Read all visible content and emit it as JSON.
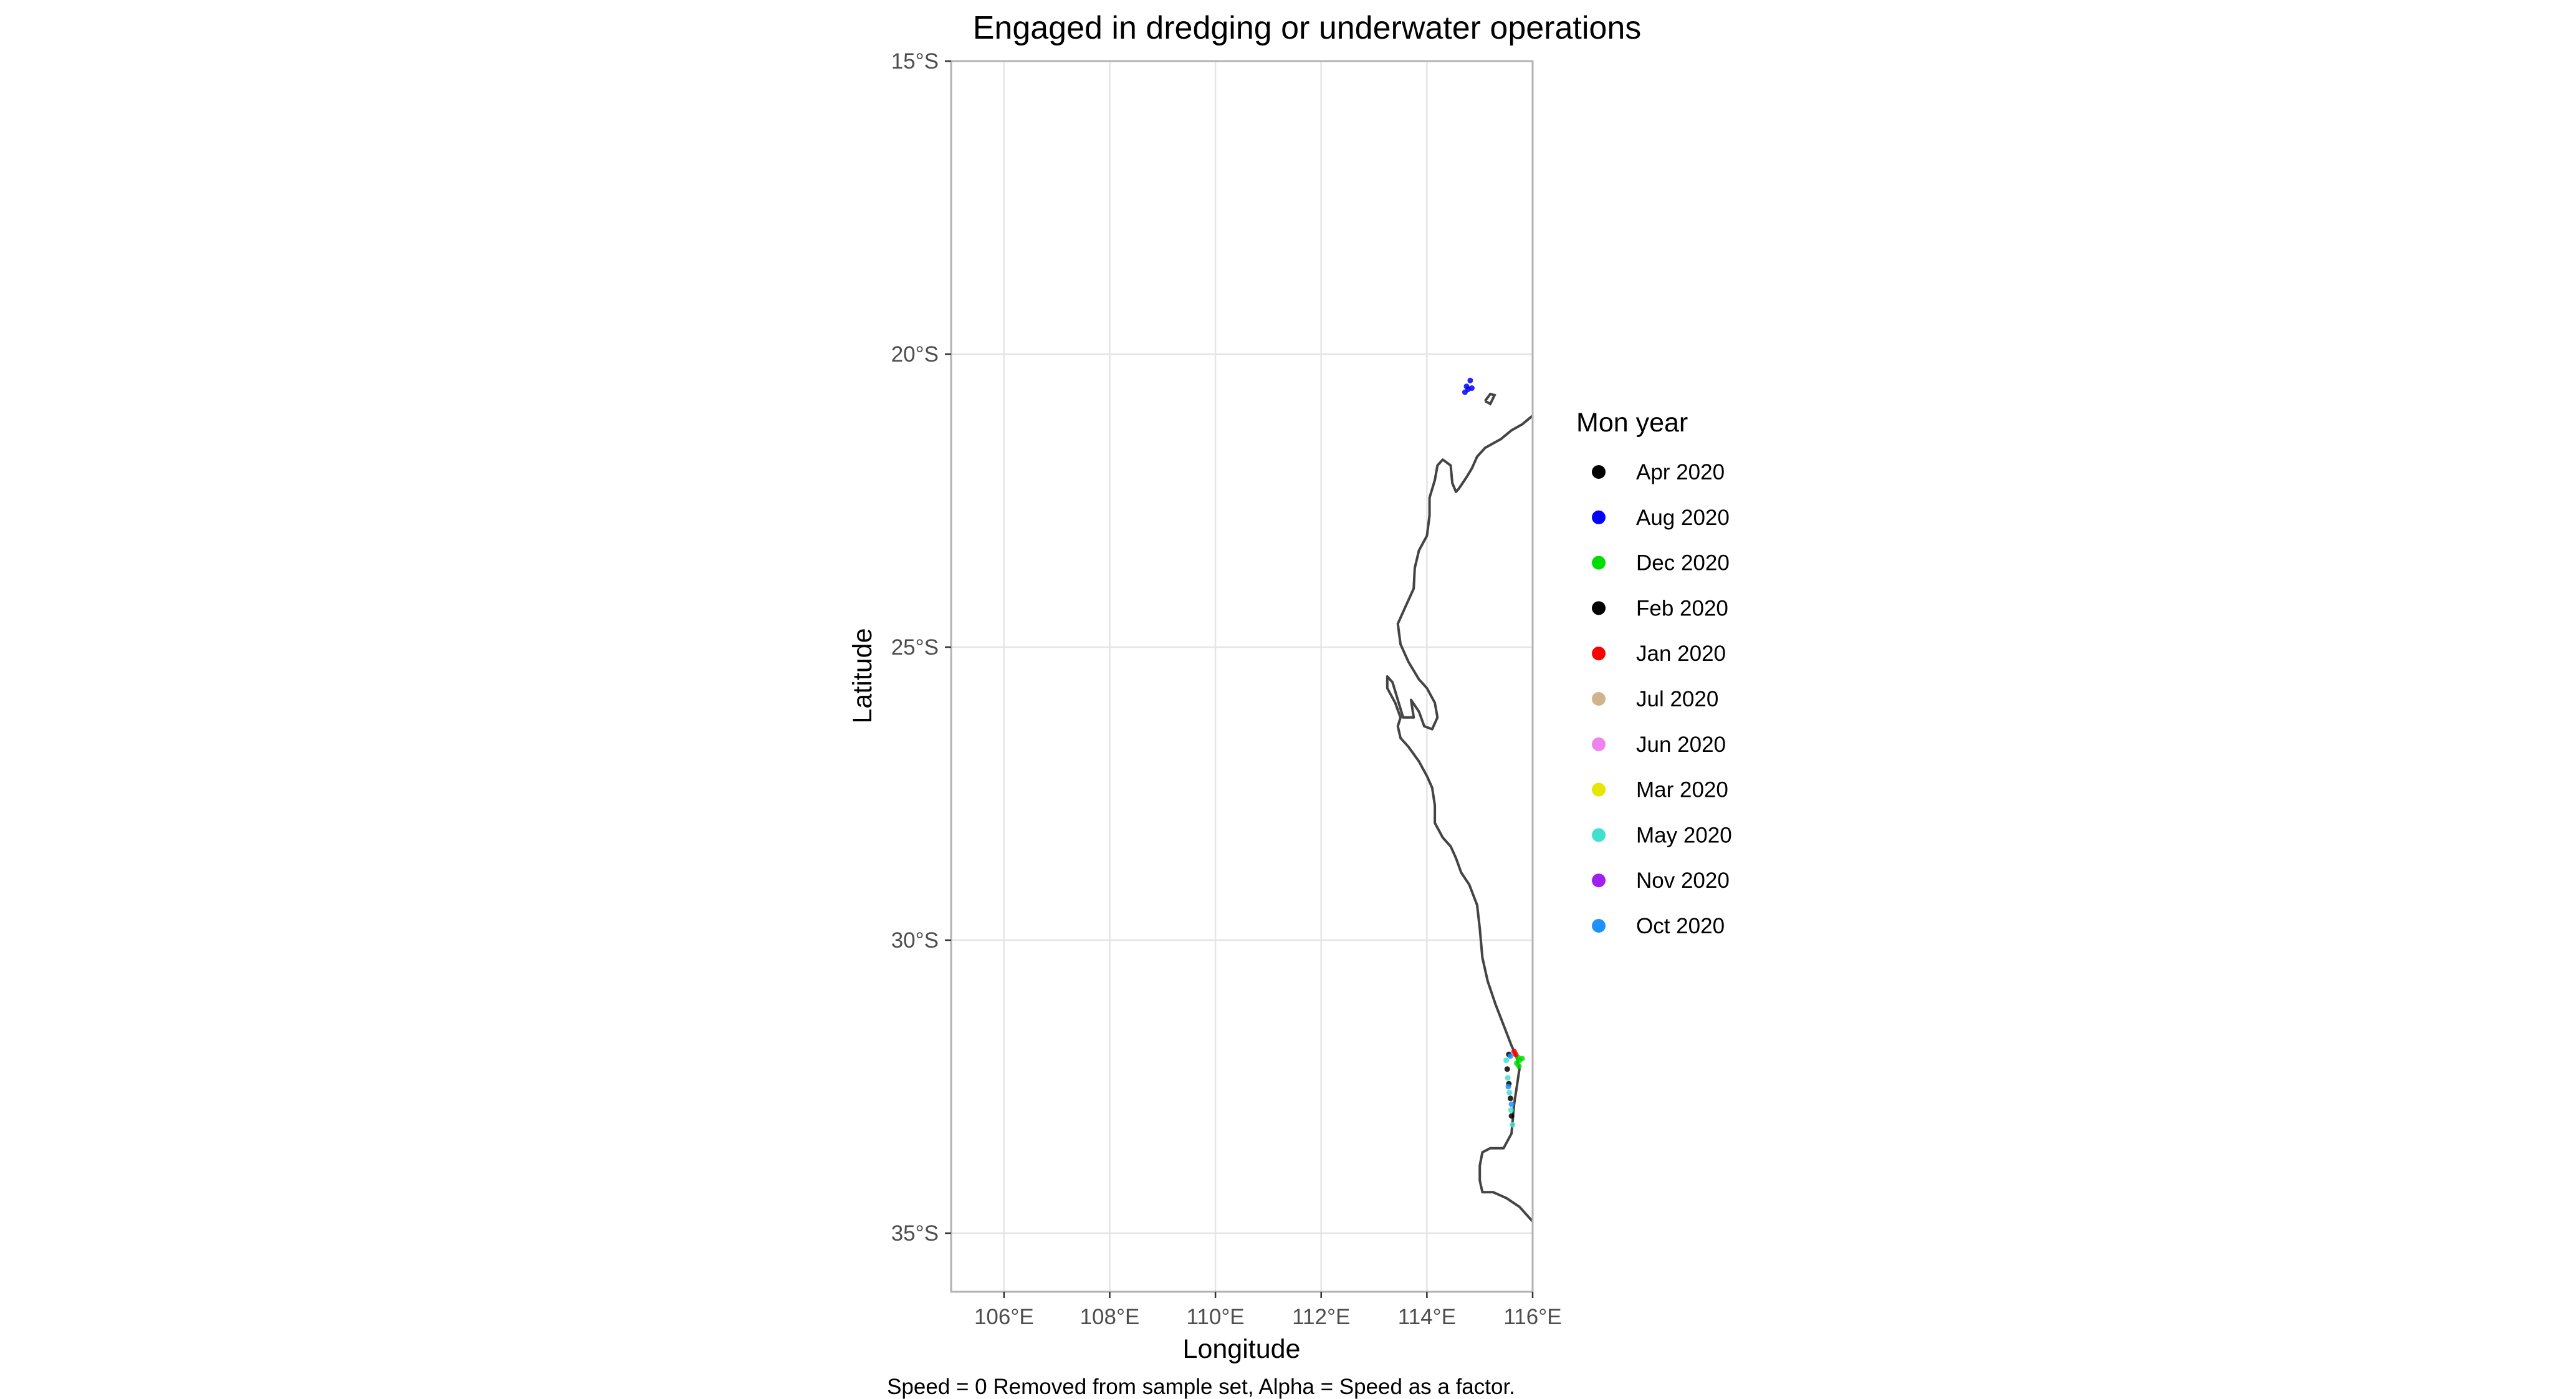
{
  "chart_data": {
    "type": "scatter",
    "title": "Engaged in dredging or underwater operations",
    "xlabel": "Longitude",
    "ylabel": "Latitude",
    "caption": "Speed = 0 Removed from sample set, Alpha = Speed as a factor.",
    "xlim": [
      105,
      116
    ],
    "ylim": [
      -36,
      -15
    ],
    "x_ticks": [
      106,
      108,
      110,
      112,
      114,
      116
    ],
    "x_tick_labels": [
      "106°E",
      "108°E",
      "110°E",
      "112°E",
      "114°E",
      "116°E"
    ],
    "y_ticks": [
      -15,
      -20,
      -25,
      -30,
      -35
    ],
    "y_tick_labels": [
      "15°S",
      "20°S",
      "25°S",
      "30°S",
      "35°S"
    ],
    "grid": true,
    "legend": {
      "title": "Mon year",
      "position": "right",
      "entries": [
        {
          "label": "Apr 2020",
          "color": "#000000"
        },
        {
          "label": "Aug 2020",
          "color": "#0000ff"
        },
        {
          "label": "Dec 2020",
          "color": "#00dd00"
        },
        {
          "label": "Feb 2020",
          "color": "#000000"
        },
        {
          "label": "Jan 2020",
          "color": "#ff0000"
        },
        {
          "label": "Jul 2020",
          "color": "#d2b48c"
        },
        {
          "label": "Jun 2020",
          "color": "#ee82ee"
        },
        {
          "label": "Mar 2020",
          "color": "#e6e600"
        },
        {
          "label": "May 2020",
          "color": "#40e0d0"
        },
        {
          "label": "Nov 2020",
          "color": "#a020f0"
        },
        {
          "label": "Oct 2020",
          "color": "#1e90ff"
        }
      ]
    },
    "coastline": {
      "color": "#444444",
      "mainland": [
        [
          116.0,
          -21.05
        ],
        [
          115.8,
          -21.2
        ],
        [
          115.6,
          -21.3
        ],
        [
          115.4,
          -21.45
        ],
        [
          115.1,
          -21.6
        ],
        [
          114.95,
          -21.75
        ],
        [
          114.85,
          -21.95
        ],
        [
          114.75,
          -22.1
        ],
        [
          114.6,
          -22.3
        ],
        [
          114.55,
          -22.35
        ],
        [
          114.48,
          -22.2
        ],
        [
          114.45,
          -21.9
        ],
        [
          114.3,
          -21.8
        ],
        [
          114.2,
          -21.9
        ],
        [
          114.15,
          -22.15
        ],
        [
          114.05,
          -22.45
        ],
        [
          114.05,
          -22.75
        ],
        [
          114.0,
          -23.1
        ],
        [
          113.85,
          -23.35
        ],
        [
          113.77,
          -23.65
        ],
        [
          113.75,
          -24.0
        ],
        [
          113.6,
          -24.3
        ],
        [
          113.45,
          -24.6
        ],
        [
          113.5,
          -24.95
        ],
        [
          113.65,
          -25.25
        ],
        [
          113.85,
          -25.55
        ],
        [
          114.0,
          -25.7
        ],
        [
          114.15,
          -25.95
        ],
        [
          114.2,
          -26.2
        ],
        [
          114.1,
          -26.4
        ],
        [
          113.95,
          -26.35
        ],
        [
          113.85,
          -26.1
        ],
        [
          113.7,
          -25.9
        ],
        [
          113.75,
          -26.2
        ],
        [
          113.55,
          -26.2
        ],
        [
          113.45,
          -25.9
        ],
        [
          113.35,
          -25.6
        ],
        [
          113.25,
          -25.5
        ],
        [
          113.25,
          -25.7
        ],
        [
          113.4,
          -25.95
        ],
        [
          113.5,
          -26.2
        ],
        [
          113.45,
          -26.35
        ],
        [
          113.5,
          -26.55
        ],
        [
          113.65,
          -26.7
        ],
        [
          113.85,
          -26.95
        ],
        [
          114.0,
          -27.2
        ],
        [
          114.1,
          -27.4
        ],
        [
          114.15,
          -27.7
        ],
        [
          114.15,
          -28.0
        ],
        [
          114.3,
          -28.25
        ],
        [
          114.45,
          -28.4
        ],
        [
          114.55,
          -28.6
        ],
        [
          114.65,
          -28.85
        ],
        [
          114.8,
          -29.05
        ],
        [
          114.95,
          -29.4
        ],
        [
          115.0,
          -29.8
        ],
        [
          115.05,
          -30.3
        ],
        [
          115.15,
          -30.7
        ],
        [
          115.3,
          -31.1
        ],
        [
          115.45,
          -31.45
        ],
        [
          115.6,
          -31.8
        ],
        [
          115.7,
          -32.0
        ],
        [
          115.75,
          -32.2
        ],
        [
          115.7,
          -32.5
        ],
        [
          115.65,
          -32.8
        ],
        [
          115.62,
          -33.1
        ],
        [
          115.6,
          -33.3
        ],
        [
          115.45,
          -33.55
        ],
        [
          115.2,
          -33.55
        ],
        [
          115.05,
          -33.62
        ],
        [
          115.0,
          -33.85
        ],
        [
          115.0,
          -34.1
        ],
        [
          115.05,
          -34.3
        ],
        [
          115.25,
          -34.3
        ],
        [
          115.5,
          -34.4
        ],
        [
          115.75,
          -34.55
        ],
        [
          116.0,
          -34.8
        ]
      ],
      "islands": [
        [
          [
            115.1,
            -20.8
          ],
          [
            115.2,
            -20.68
          ],
          [
            115.28,
            -20.7
          ],
          [
            115.2,
            -20.85
          ],
          [
            115.1,
            -20.8
          ]
        ]
      ]
    },
    "points": [
      {
        "lon": 114.75,
        "lat": -20.55,
        "color": "#0000ff"
      },
      {
        "lon": 114.78,
        "lat": -20.6,
        "color": "#0000ff"
      },
      {
        "lon": 114.82,
        "lat": -20.45,
        "color": "#0000ff"
      },
      {
        "lon": 114.85,
        "lat": -20.58,
        "color": "#0000ff"
      },
      {
        "lon": 114.72,
        "lat": -20.65,
        "color": "#0000ff"
      },
      {
        "lon": 115.72,
        "lat": -32.0,
        "color": "#00dd00"
      },
      {
        "lon": 115.75,
        "lat": -32.05,
        "color": "#00dd00"
      },
      {
        "lon": 115.7,
        "lat": -32.1,
        "color": "#00dd00"
      },
      {
        "lon": 115.8,
        "lat": -32.02,
        "color": "#00dd00"
      },
      {
        "lon": 115.74,
        "lat": -32.15,
        "color": "#00dd00"
      },
      {
        "lon": 115.55,
        "lat": -31.95,
        "color": "#000000"
      },
      {
        "lon": 115.52,
        "lat": -32.2,
        "color": "#000000"
      },
      {
        "lon": 115.55,
        "lat": -32.45,
        "color": "#000000"
      },
      {
        "lon": 115.58,
        "lat": -32.7,
        "color": "#000000"
      },
      {
        "lon": 115.6,
        "lat": -33.0,
        "color": "#000000"
      },
      {
        "lon": 115.5,
        "lat": -32.05,
        "color": "#40e0d0"
      },
      {
        "lon": 115.53,
        "lat": -32.35,
        "color": "#40e0d0"
      },
      {
        "lon": 115.56,
        "lat": -32.6,
        "color": "#40e0d0"
      },
      {
        "lon": 115.59,
        "lat": -32.9,
        "color": "#40e0d0"
      },
      {
        "lon": 115.62,
        "lat": -33.15,
        "color": "#40e0d0"
      },
      {
        "lon": 115.58,
        "lat": -31.98,
        "color": "#1e90ff"
      },
      {
        "lon": 115.54,
        "lat": -32.5,
        "color": "#1e90ff"
      },
      {
        "lon": 115.6,
        "lat": -32.8,
        "color": "#1e90ff"
      },
      {
        "lon": 115.65,
        "lat": -31.9,
        "color": "#ff0000"
      },
      {
        "lon": 115.68,
        "lat": -31.95,
        "color": "#ff0000"
      }
    ]
  }
}
